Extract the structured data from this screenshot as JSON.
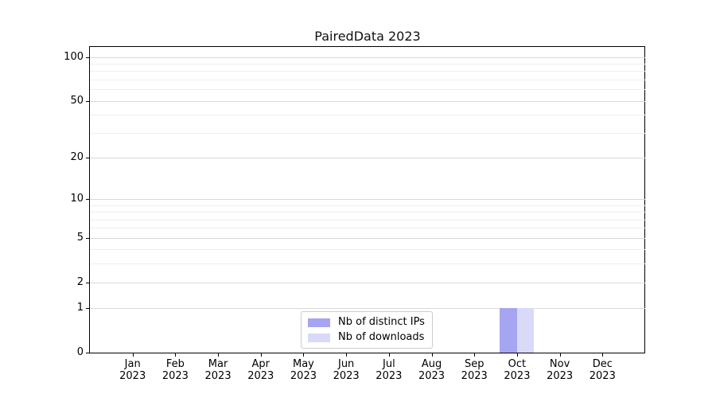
{
  "chart_data": {
    "type": "bar",
    "title": "PairedData 2023",
    "categories": [
      "Jan 2023",
      "Feb 2023",
      "Mar 2023",
      "Apr 2023",
      "May 2023",
      "Jun 2023",
      "Jul 2023",
      "Aug 2023",
      "Sep 2023",
      "Oct 2023",
      "Nov 2023",
      "Dec 2023"
    ],
    "series": [
      {
        "name": "Nb of distinct IPs",
        "color": "#a5a5f2",
        "values": [
          0,
          0,
          0,
          0,
          0,
          0,
          0,
          0,
          0,
          1,
          0,
          0
        ]
      },
      {
        "name": "Nb of downloads",
        "color": "#d9d9f8",
        "values": [
          0,
          0,
          0,
          0,
          0,
          0,
          0,
          0,
          0,
          1,
          0,
          0
        ]
      }
    ],
    "xlabel": "",
    "ylabel": "",
    "yscale": "log1p",
    "ylim": [
      0,
      117
    ],
    "yticks": [
      0,
      1,
      2,
      5,
      10,
      20,
      50,
      100
    ],
    "minor_yticks": [
      3,
      4,
      6,
      7,
      8,
      9,
      30,
      40,
      60,
      70,
      80,
      90
    ],
    "grid": true,
    "legend_position": "lower center",
    "colors": {
      "major_grid": "#d9d9d9",
      "minor_grid": "#efefef",
      "axis": "#000000",
      "text": "#000000"
    }
  }
}
